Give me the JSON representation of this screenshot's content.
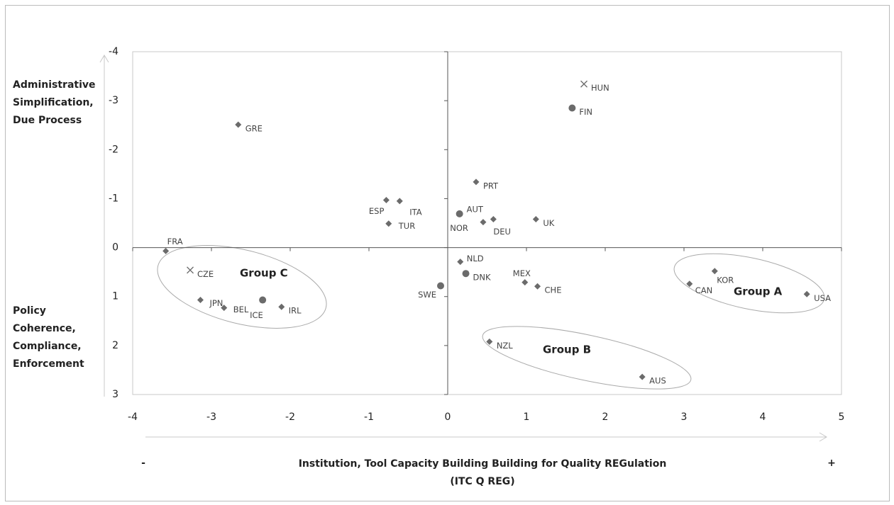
{
  "chart_data": {
    "type": "scatter",
    "color": "#6b6b6b",
    "xlim": [
      -4,
      5
    ],
    "xticks": [
      -4,
      -3,
      -2,
      -1,
      0,
      1,
      2,
      3,
      4,
      5
    ],
    "ylim": [
      -4,
      3
    ],
    "yticks": [
      -4,
      -3,
      -2,
      -1,
      0,
      1,
      2,
      3
    ],
    "y_inverted": true,
    "y_label_top": [
      "Administrative",
      "Simplification,",
      "Due Process"
    ],
    "y_label_bottom": [
      "Policy",
      "Coherence,",
      "Compliance,",
      "Enforcement"
    ],
    "x_label": [
      "Institution, Tool Capacity Building Building for Quality REGulation",
      "(ITC Q REG)"
    ],
    "x_minus": "-",
    "x_plus": "+",
    "groups": [
      "Group A",
      "Group B",
      "Group C"
    ],
    "points": [
      {
        "label": "HUN",
        "x": 1.73,
        "y": -3.34,
        "marker": "x"
      },
      {
        "label": "FIN",
        "x": 1.58,
        "y": -2.85,
        "marker": "circle"
      },
      {
        "label": "GRE",
        "x": -2.66,
        "y": -2.51,
        "marker": "diamond"
      },
      {
        "label": "PRT",
        "x": 0.36,
        "y": -1.34,
        "marker": "diamond"
      },
      {
        "label": "ESP",
        "x": -0.78,
        "y": -0.97,
        "marker": "diamond"
      },
      {
        "label": "ITA",
        "x": -0.61,
        "y": -0.95,
        "marker": "diamond"
      },
      {
        "label": "TUR",
        "x": -0.75,
        "y": -0.49,
        "marker": "diamond"
      },
      {
        "label": "AUT",
        "x": 0.15,
        "y": -0.69,
        "marker": "circle"
      },
      {
        "label": "NOR",
        "x": 0.45,
        "y": -0.52,
        "marker": "diamond"
      },
      {
        "label": "DEU",
        "x": 0.58,
        "y": -0.58,
        "marker": "diamond"
      },
      {
        "label": "UK",
        "x": 1.12,
        "y": -0.58,
        "marker": "diamond"
      },
      {
        "label": "FRA",
        "x": -3.58,
        "y": 0.07,
        "marker": "diamond"
      },
      {
        "label": "CZE",
        "x": -3.27,
        "y": 0.46,
        "marker": "x"
      },
      {
        "label": "JPN",
        "x": -3.14,
        "y": 1.07,
        "marker": "diamond"
      },
      {
        "label": "BEL",
        "x": -2.84,
        "y": 1.23,
        "marker": "diamond"
      },
      {
        "label": "ICE",
        "x": -2.35,
        "y": 1.07,
        "marker": "circle"
      },
      {
        "label": "IRL",
        "x": -2.11,
        "y": 1.21,
        "marker": "diamond"
      },
      {
        "label": "NLD",
        "x": 0.16,
        "y": 0.29,
        "marker": "diamond"
      },
      {
        "label": "DNK",
        "x": 0.23,
        "y": 0.53,
        "marker": "circle"
      },
      {
        "label": "SWE",
        "x": -0.09,
        "y": 0.78,
        "marker": "circle"
      },
      {
        "label": "MEX",
        "x": 0.98,
        "y": 0.71,
        "marker": "diamond"
      },
      {
        "label": "CHE",
        "x": 1.14,
        "y": 0.79,
        "marker": "diamond"
      },
      {
        "label": "KOR",
        "x": 3.39,
        "y": 0.48,
        "marker": "diamond"
      },
      {
        "label": "CAN",
        "x": 3.07,
        "y": 0.74,
        "marker": "diamond"
      },
      {
        "label": "USA",
        "x": 4.56,
        "y": 0.95,
        "marker": "diamond"
      },
      {
        "label": "NZL",
        "x": 0.53,
        "y": 1.92,
        "marker": "diamond"
      },
      {
        "label": "AUS",
        "x": 2.47,
        "y": 2.64,
        "marker": "diamond"
      }
    ]
  }
}
